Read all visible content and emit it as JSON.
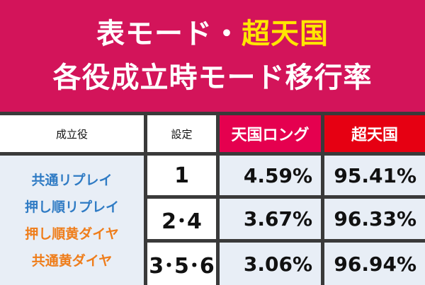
{
  "title": {
    "line1": "表モード・",
    "line1_highlight": "超天国",
    "line2": "各役成立時モード移行率"
  },
  "table": {
    "header": [
      "成立役",
      "設定",
      "天国ロング",
      "超天国"
    ],
    "roles": [
      "共通リプレイ",
      "押し順リプレイ",
      "押し順黄ダイヤ",
      "共通黄ダイヤ"
    ],
    "rows": [
      [
        "1",
        "4.59%",
        "95.41%"
      ],
      [
        "2･4",
        "3.67%",
        "96.33%"
      ],
      [
        "3･5･6",
        "3.06%",
        "96.94%"
      ]
    ]
  }
}
